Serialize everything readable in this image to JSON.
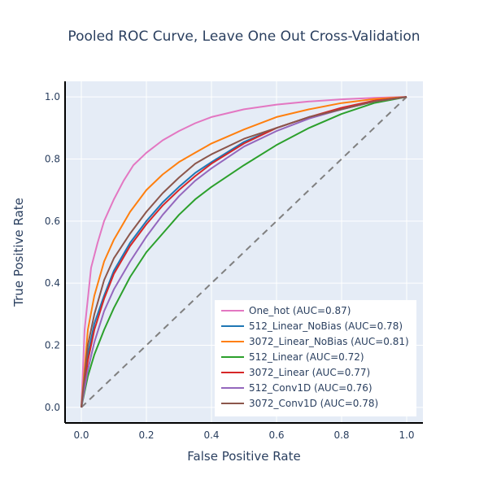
{
  "chart_data": {
    "type": "line",
    "title": "Pooled ROC Curve, Leave One Out Cross-Validation",
    "xlabel": "False Positive Rate",
    "ylabel": "True Positive Rate",
    "xlim": [
      -0.05,
      1.05
    ],
    "ylim": [
      -0.05,
      1.05
    ],
    "xticks": [
      "0.0",
      "0.2",
      "0.4",
      "0.6",
      "0.8",
      "1.0"
    ],
    "yticks": [
      "0.0",
      "0.2",
      "0.4",
      "0.6",
      "0.8",
      "1.0"
    ],
    "grid": true,
    "plot_background": "#E5ECF6",
    "legend_position": "bottom-right",
    "diagonal": {
      "color": "#808080",
      "dash": true,
      "x": [
        0,
        1
      ],
      "y": [
        0,
        1
      ]
    },
    "series": [
      {
        "name": "One_hot (AUC=0.87)",
        "color": "#E377C2",
        "x": [
          0,
          0.01,
          0.02,
          0.03,
          0.05,
          0.07,
          0.1,
          0.13,
          0.16,
          0.2,
          0.25,
          0.3,
          0.35,
          0.4,
          0.5,
          0.6,
          0.7,
          0.8,
          0.9,
          1.0
        ],
        "y": [
          0,
          0.25,
          0.35,
          0.45,
          0.53,
          0.6,
          0.67,
          0.73,
          0.78,
          0.82,
          0.86,
          0.89,
          0.915,
          0.935,
          0.96,
          0.975,
          0.985,
          0.992,
          0.997,
          1.0
        ]
      },
      {
        "name": "512_Linear_NoBias (AUC=0.78)",
        "color": "#1F77B4",
        "x": [
          0,
          0.02,
          0.04,
          0.07,
          0.1,
          0.15,
          0.2,
          0.25,
          0.3,
          0.35,
          0.4,
          0.5,
          0.6,
          0.7,
          0.8,
          0.9,
          1.0
        ],
        "y": [
          0,
          0.17,
          0.27,
          0.36,
          0.44,
          0.53,
          0.6,
          0.66,
          0.71,
          0.755,
          0.79,
          0.855,
          0.9,
          0.935,
          0.96,
          0.985,
          1.0
        ]
      },
      {
        "name": "3072_Linear_NoBias (AUC=0.81)",
        "color": "#FF7F0E",
        "x": [
          0,
          0.02,
          0.04,
          0.07,
          0.1,
          0.15,
          0.2,
          0.25,
          0.3,
          0.35,
          0.4,
          0.5,
          0.6,
          0.7,
          0.8,
          0.9,
          1.0
        ],
        "y": [
          0,
          0.25,
          0.36,
          0.47,
          0.54,
          0.63,
          0.7,
          0.75,
          0.79,
          0.82,
          0.85,
          0.895,
          0.935,
          0.96,
          0.98,
          0.993,
          1.0
        ]
      },
      {
        "name": "512_Linear (AUC=0.72)",
        "color": "#2CA02C",
        "x": [
          0,
          0.02,
          0.04,
          0.07,
          0.1,
          0.15,
          0.2,
          0.25,
          0.3,
          0.35,
          0.4,
          0.5,
          0.6,
          0.7,
          0.8,
          0.9,
          1.0
        ],
        "y": [
          0,
          0.1,
          0.17,
          0.25,
          0.32,
          0.42,
          0.5,
          0.56,
          0.62,
          0.67,
          0.71,
          0.78,
          0.845,
          0.9,
          0.945,
          0.98,
          1.0
        ]
      },
      {
        "name": "3072_Linear (AUC=0.77)",
        "color": "#D62728",
        "x": [
          0,
          0.02,
          0.04,
          0.07,
          0.1,
          0.15,
          0.2,
          0.25,
          0.3,
          0.35,
          0.4,
          0.5,
          0.6,
          0.7,
          0.8,
          0.9,
          1.0
        ],
        "y": [
          0,
          0.15,
          0.25,
          0.35,
          0.43,
          0.52,
          0.59,
          0.65,
          0.7,
          0.745,
          0.785,
          0.85,
          0.9,
          0.935,
          0.965,
          0.988,
          1.0
        ]
      },
      {
        "name": "512_Conv1D (AUC=0.76)",
        "color": "#9467BD",
        "x": [
          0,
          0.02,
          0.04,
          0.07,
          0.1,
          0.15,
          0.2,
          0.25,
          0.3,
          0.35,
          0.4,
          0.5,
          0.6,
          0.7,
          0.8,
          0.9,
          1.0
        ],
        "y": [
          0,
          0.12,
          0.21,
          0.31,
          0.38,
          0.47,
          0.55,
          0.62,
          0.68,
          0.73,
          0.77,
          0.84,
          0.89,
          0.93,
          0.96,
          0.985,
          1.0
        ]
      },
      {
        "name": "3072_Conv1D (AUC=0.78)",
        "color": "#8C564B",
        "x": [
          0,
          0.02,
          0.04,
          0.07,
          0.1,
          0.15,
          0.2,
          0.25,
          0.3,
          0.35,
          0.4,
          0.5,
          0.6,
          0.7,
          0.8,
          0.9,
          1.0
        ],
        "y": [
          0,
          0.2,
          0.3,
          0.41,
          0.48,
          0.56,
          0.63,
          0.69,
          0.74,
          0.785,
          0.815,
          0.865,
          0.9,
          0.935,
          0.96,
          0.985,
          1.0
        ]
      }
    ]
  }
}
